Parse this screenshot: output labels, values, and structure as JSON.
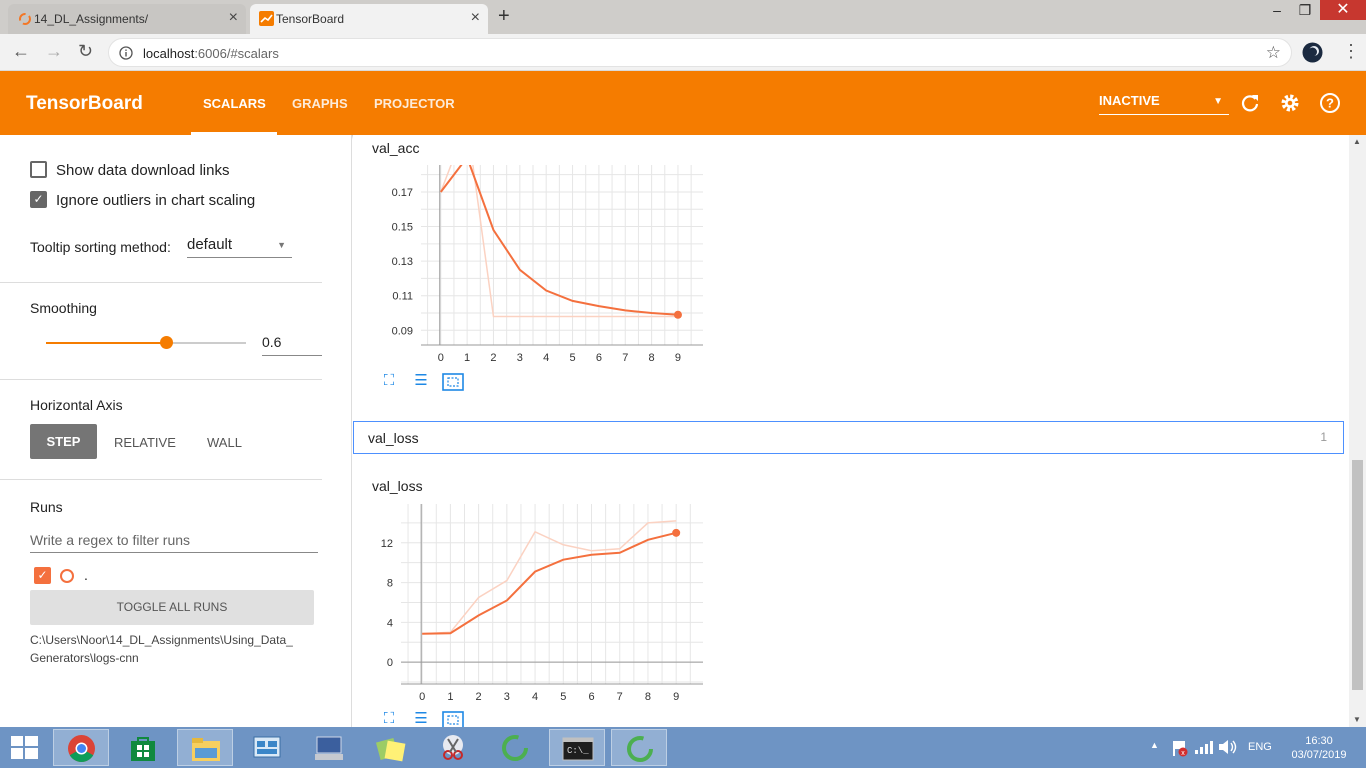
{
  "browser": {
    "tabs": [
      {
        "title": "14_DL_Assignments/"
      },
      {
        "title": "TensorBoard"
      }
    ],
    "url_host": "localhost",
    "url_path": ":6006/#scalars"
  },
  "header": {
    "title": "TensorBoard",
    "nav": [
      "SCALARS",
      "GRAPHS",
      "PROJECTOR"
    ],
    "status_select": "INACTIVE"
  },
  "sidebar": {
    "show_download_links": "Show data download links",
    "ignore_outliers": "Ignore outliers in chart scaling",
    "tooltip_label": "Tooltip sorting method:",
    "tooltip_value": "default",
    "smoothing_label": "Smoothing",
    "smoothing_value": "0.6",
    "smoothing_fraction": 0.6,
    "horizontal_axis_label": "Horizontal Axis",
    "axis_options": [
      "STEP",
      "RELATIVE",
      "WALL"
    ],
    "runs_label": "Runs",
    "runs_filter_placeholder": "Write a regex to filter runs",
    "run_name": ".",
    "toggle_all": "TOGGLE ALL RUNS",
    "log_path": "C:\\Users\\Noor\\14_DL_Assignments\\Using_Data_",
    "log_path_2": "Generators\\logs-cnn"
  },
  "group": {
    "name": "val_loss",
    "count": "1"
  },
  "colors": {
    "accent": "#f57c00",
    "series": "#f4703e",
    "series_raw": "#fbd2c2"
  },
  "taskbar": {
    "lang": "ENG",
    "time": "16:30",
    "date": "03/07/2019"
  },
  "chart_data": [
    {
      "type": "line",
      "title": "val_acc",
      "x": [
        0,
        1,
        2,
        3,
        4,
        5,
        6,
        7,
        8,
        9
      ],
      "y_ticks": [
        "0.17",
        "0.15",
        "0.13",
        "0.11",
        "0.09"
      ],
      "ylim": [
        0.0815,
        0.1856
      ],
      "series": [
        {
          "values": [
            0.17,
            0.19,
            0.148,
            0.125,
            0.113,
            0.107,
            0.104,
            0.1015,
            0.1,
            0.099
          ]
        },
        {
          "values": [
            0.17,
            0.21,
            0.098,
            0.098,
            0.098,
            0.098,
            0.098,
            0.098,
            0.098,
            0.098
          ]
        }
      ]
    },
    {
      "type": "line",
      "title": "val_loss",
      "x": [
        0,
        1,
        2,
        3,
        4,
        5,
        6,
        7,
        8,
        9
      ],
      "y_ticks": [
        "12",
        "8",
        "4",
        "0"
      ],
      "ylim": [
        -2.2,
        15.9
      ],
      "series": [
        {
          "values": [
            2.85,
            2.9,
            4.7,
            6.2,
            9.1,
            10.3,
            10.8,
            11.0,
            12.3,
            13.0
          ]
        },
        {
          "values": [
            2.85,
            3.0,
            6.5,
            8.2,
            13.1,
            11.8,
            11.2,
            11.4,
            14.0,
            14.2
          ]
        }
      ]
    }
  ]
}
